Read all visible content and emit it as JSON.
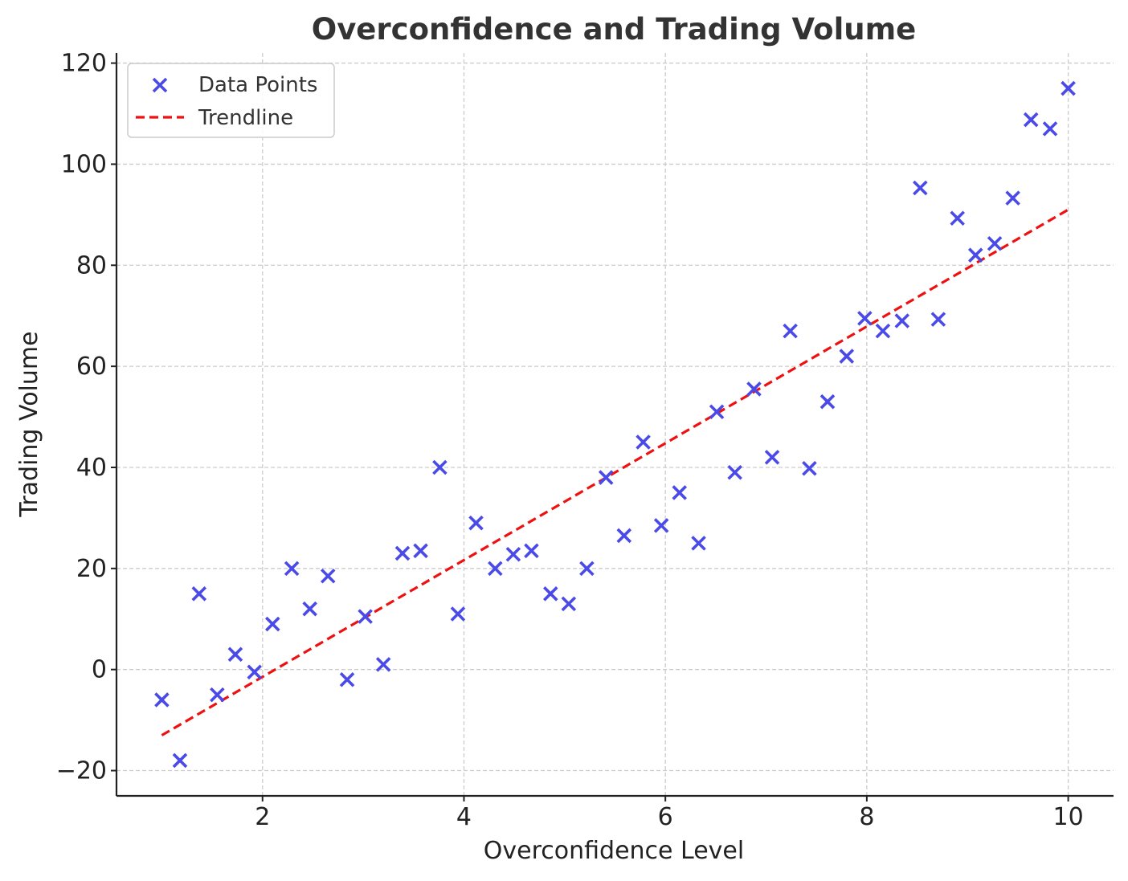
{
  "chart_data": {
    "type": "scatter",
    "title": "Overconfidence and Trading Volume",
    "xlabel": "Overconfidence Level",
    "ylabel": "Trading Volume",
    "xlim": [
      0.55,
      10.45
    ],
    "ylim": [
      -25,
      122
    ],
    "xticks": [
      2,
      4,
      6,
      8,
      10
    ],
    "yticks": [
      -20,
      0,
      20,
      40,
      60,
      80,
      100,
      120
    ],
    "xtick_labels": [
      "2",
      "4",
      "6",
      "8",
      "10"
    ],
    "ytick_labels": [
      "−20",
      "0",
      "20",
      "40",
      "60",
      "80",
      "100",
      "120"
    ],
    "grid": true,
    "legend_position": "upper-left",
    "colors": {
      "points": "#4a4ae8",
      "trendline": "#ee1111"
    },
    "series": [
      {
        "name": "Data Points",
        "kind": "scatter",
        "marker": "x",
        "x": [
          1.0,
          1.18,
          1.37,
          1.55,
          1.73,
          1.92,
          2.1,
          2.29,
          2.47,
          2.65,
          2.84,
          3.02,
          3.2,
          3.39,
          3.57,
          3.76,
          3.94,
          4.12,
          4.31,
          4.49,
          4.67,
          4.86,
          5.04,
          5.22,
          5.41,
          5.59,
          5.78,
          5.96,
          6.14,
          6.33,
          6.51,
          6.69,
          6.88,
          7.06,
          7.24,
          7.43,
          7.61,
          7.8,
          7.98,
          8.16,
          8.35,
          8.53,
          8.71,
          8.9,
          9.08,
          9.27,
          9.45,
          9.63,
          9.82,
          10.0
        ],
        "y": [
          -6,
          -18,
          15,
          -5,
          3,
          -0.5,
          9,
          20,
          12,
          18.5,
          -2,
          10.5,
          1,
          23,
          23.5,
          40,
          11,
          29,
          20,
          22.8,
          23.5,
          15,
          13,
          20,
          38,
          26.5,
          45,
          28.5,
          35,
          25,
          51,
          39,
          55.5,
          42,
          67,
          39.8,
          53,
          62,
          69.5,
          67,
          69,
          95.3,
          69.3,
          89.3,
          82,
          84.3,
          93.3,
          108.8,
          107,
          115
        ]
      },
      {
        "name": "Trendline",
        "kind": "line",
        "style": "dashed",
        "x": [
          1.0,
          10.0
        ],
        "y": [
          -13,
          91
        ]
      }
    ]
  }
}
